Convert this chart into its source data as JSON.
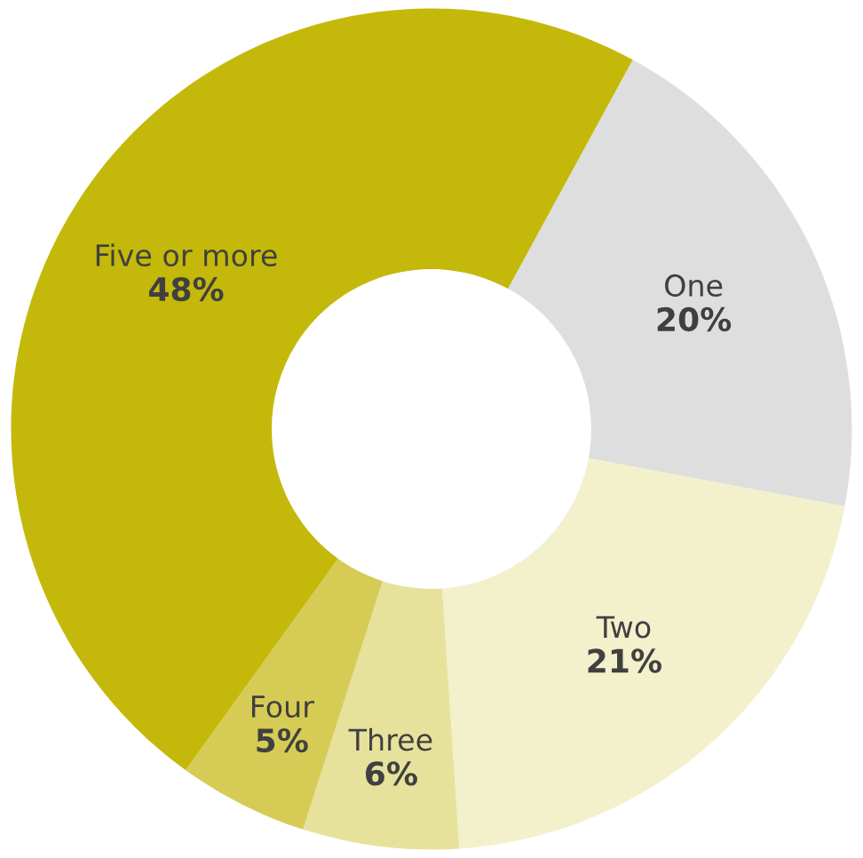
{
  "chart_data": {
    "type": "donut",
    "categories": [
      "One",
      "Two",
      "Three",
      "Four",
      "Five or more"
    ],
    "values": [
      20,
      21,
      6,
      5,
      48
    ],
    "value_labels": [
      "20%",
      "21%",
      "6%",
      "5%",
      "48%"
    ],
    "colors": [
      "#dedede",
      "#f3f0cc",
      "#e6e29c",
      "#d6cc55",
      "#c4b90a"
    ],
    "legend": false
  }
}
